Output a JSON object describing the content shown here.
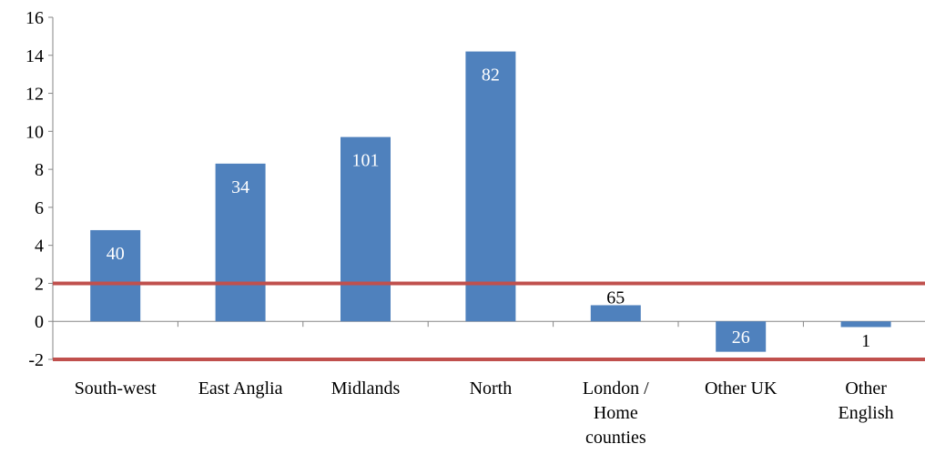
{
  "chart_data": {
    "type": "bar",
    "categories": [
      [
        "South-west"
      ],
      [
        "East Anglia"
      ],
      [
        "Midlands"
      ],
      [
        "North"
      ],
      [
        "London /",
        "Home",
        "counties"
      ],
      [
        "Other UK"
      ],
      [
        "Other",
        "English"
      ]
    ],
    "values": [
      4.8,
      8.3,
      9.7,
      14.2,
      0.85,
      -1.6,
      -0.3
    ],
    "data_labels": [
      "40",
      "34",
      "101",
      "82",
      "65",
      "26",
      "1"
    ],
    "ylim": [
      -2,
      16
    ],
    "yticks": [
      "-2",
      "0",
      "2",
      "4",
      "6",
      "8",
      "10",
      "12",
      "14",
      "16"
    ],
    "reference_lines": [
      2,
      -2
    ],
    "grid": false,
    "colors": {
      "bar": "#4F81BD",
      "reference_line": "#C0504D",
      "axis": "#868686",
      "label_inside": "#ffffff",
      "label_outside": "#000000"
    }
  }
}
